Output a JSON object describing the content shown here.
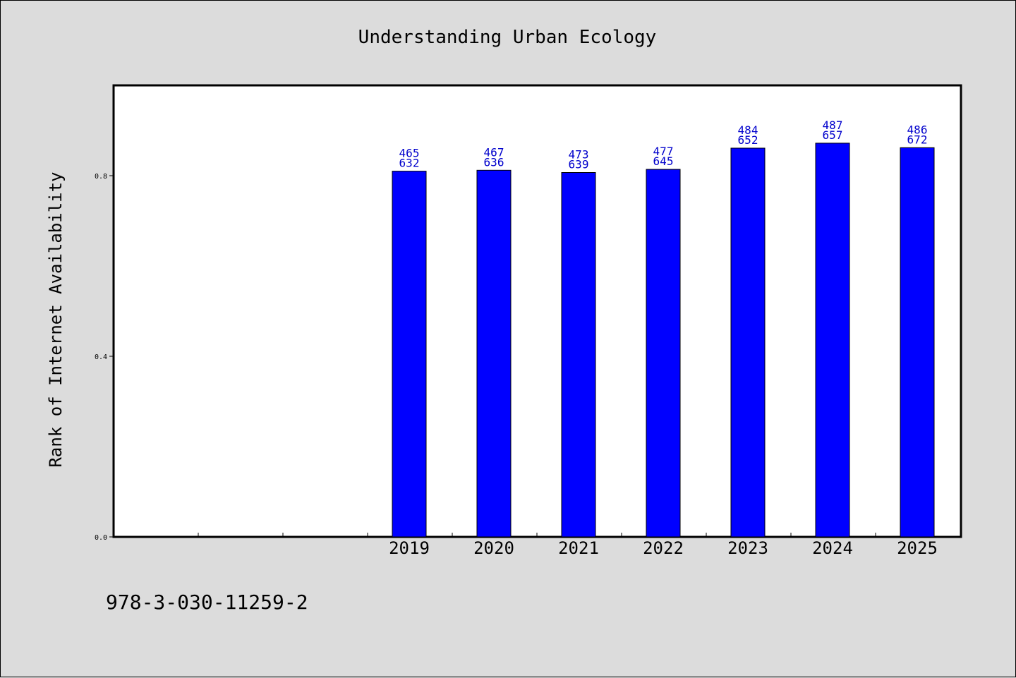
{
  "chart_data": {
    "type": "bar",
    "title": "Understanding Urban Ecology",
    "xlabel": "",
    "ylabel": "Rank of Internet Availability",
    "ylim": [
      0,
      1.0
    ],
    "yticks": [
      "0.0",
      "0.4",
      "0.8"
    ],
    "grid": false,
    "categories": [
      "2019",
      "2020",
      "2021",
      "2022",
      "2023",
      "2024",
      "2025"
    ],
    "values": [
      0.81,
      0.812,
      0.807,
      0.814,
      0.861,
      0.872,
      0.862
    ],
    "bar_labels": [
      [
        "465",
        "632"
      ],
      [
        "467",
        "636"
      ],
      [
        "473",
        "639"
      ],
      [
        "477",
        "645"
      ],
      [
        "484",
        "652"
      ],
      [
        "487",
        "657"
      ],
      [
        "486",
        "672"
      ]
    ],
    "empty_slots_before": 3,
    "bar_color": "#0000ff",
    "label_color": "#0000cc"
  },
  "footer": {
    "isbn": "978-3-030-11259-2"
  }
}
